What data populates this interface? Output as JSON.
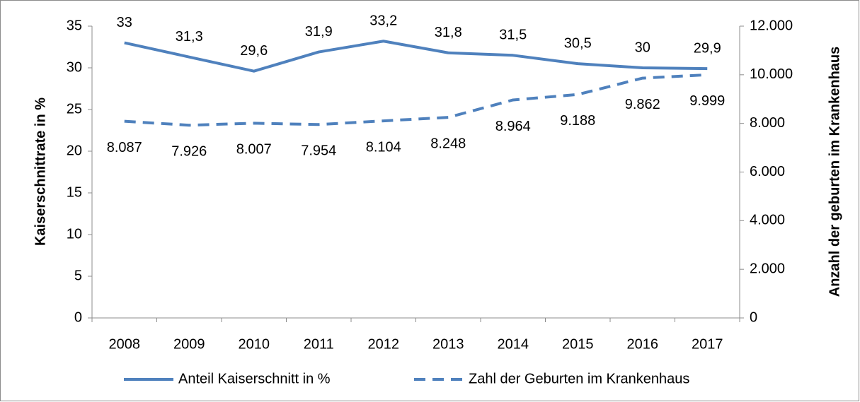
{
  "chart_data": {
    "type": "line",
    "categories": [
      "2008",
      "2009",
      "2010",
      "2011",
      "2012",
      "2013",
      "2014",
      "2015",
      "2016",
      "2017"
    ],
    "y_label": "Kaiserschnittrate in %",
    "y2_label": "Anzahl der geburten im Krankenhaus",
    "ylim": [
      0,
      35
    ],
    "yticks": [
      0,
      5,
      10,
      15,
      20,
      25,
      30,
      35
    ],
    "y2lim": [
      0,
      12000
    ],
    "y2ticks": [
      0,
      {
        "value": 2000,
        "label": "2.000"
      },
      {
        "value": 4000,
        "label": "4.000"
      },
      {
        "value": 6000,
        "label": "6.000"
      },
      {
        "value": 8000,
        "label": "8.000"
      },
      {
        "value": 10000,
        "label": "10.000"
      },
      {
        "value": 12000,
        "label": "12.000"
      }
    ],
    "legend": "bottom",
    "series": [
      {
        "name": "Anteil Kaiserschnitt in %",
        "color": "#4f81bd",
        "dash": "solid",
        "axis": "y",
        "values": [
          33,
          31.3,
          29.6,
          31.9,
          33.2,
          31.8,
          31.5,
          30.5,
          30,
          29.9
        ],
        "value_labels": [
          "33",
          "31,3",
          "29,6",
          "31,9",
          "33,2",
          "31,8",
          "31,5",
          "30,5",
          "30",
          "29,9"
        ]
      },
      {
        "name": "Zahl der Geburten im Krankenhaus",
        "color": "#4f81bd",
        "dash": "dashed",
        "axis": "y2",
        "values": [
          8087,
          7926,
          8007,
          7954,
          8104,
          8248,
          8964,
          9188,
          9862,
          9999
        ],
        "value_labels": [
          "8.087",
          "7.926",
          "8.007",
          "7.954",
          "8.104",
          "8.248",
          "8.964",
          "9.188",
          "9.862",
          "9.999"
        ]
      }
    ]
  }
}
